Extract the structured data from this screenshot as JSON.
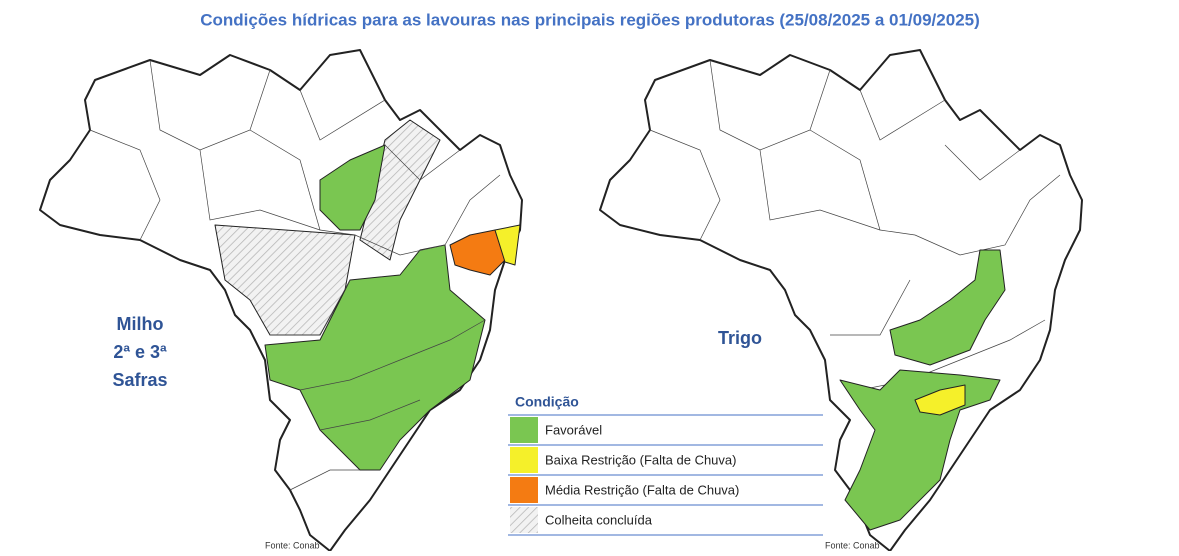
{
  "header": {
    "title": "Condições hídricas para as lavouras nas principais regiões produtoras (25/08/2025 a 01/09/2025)"
  },
  "maps": [
    {
      "label_lines": [
        "Milho",
        "2ª e 3ª",
        "Safras"
      ],
      "source": "Fonte: Conab"
    },
    {
      "label_lines": [
        "Trigo"
      ],
      "source": "Fonte: Conab"
    }
  ],
  "legend": {
    "title": "Condição",
    "items": [
      {
        "label": "Favorável",
        "color": "#7ac651"
      },
      {
        "label": "Baixa Restrição (Falta de Chuva)",
        "color": "#f5f02a"
      },
      {
        "label": "Média Restrição (Falta de Chuva)",
        "color": "#f47b12"
      },
      {
        "label": "Colheita concluída",
        "color": "hatch"
      }
    ]
  }
}
